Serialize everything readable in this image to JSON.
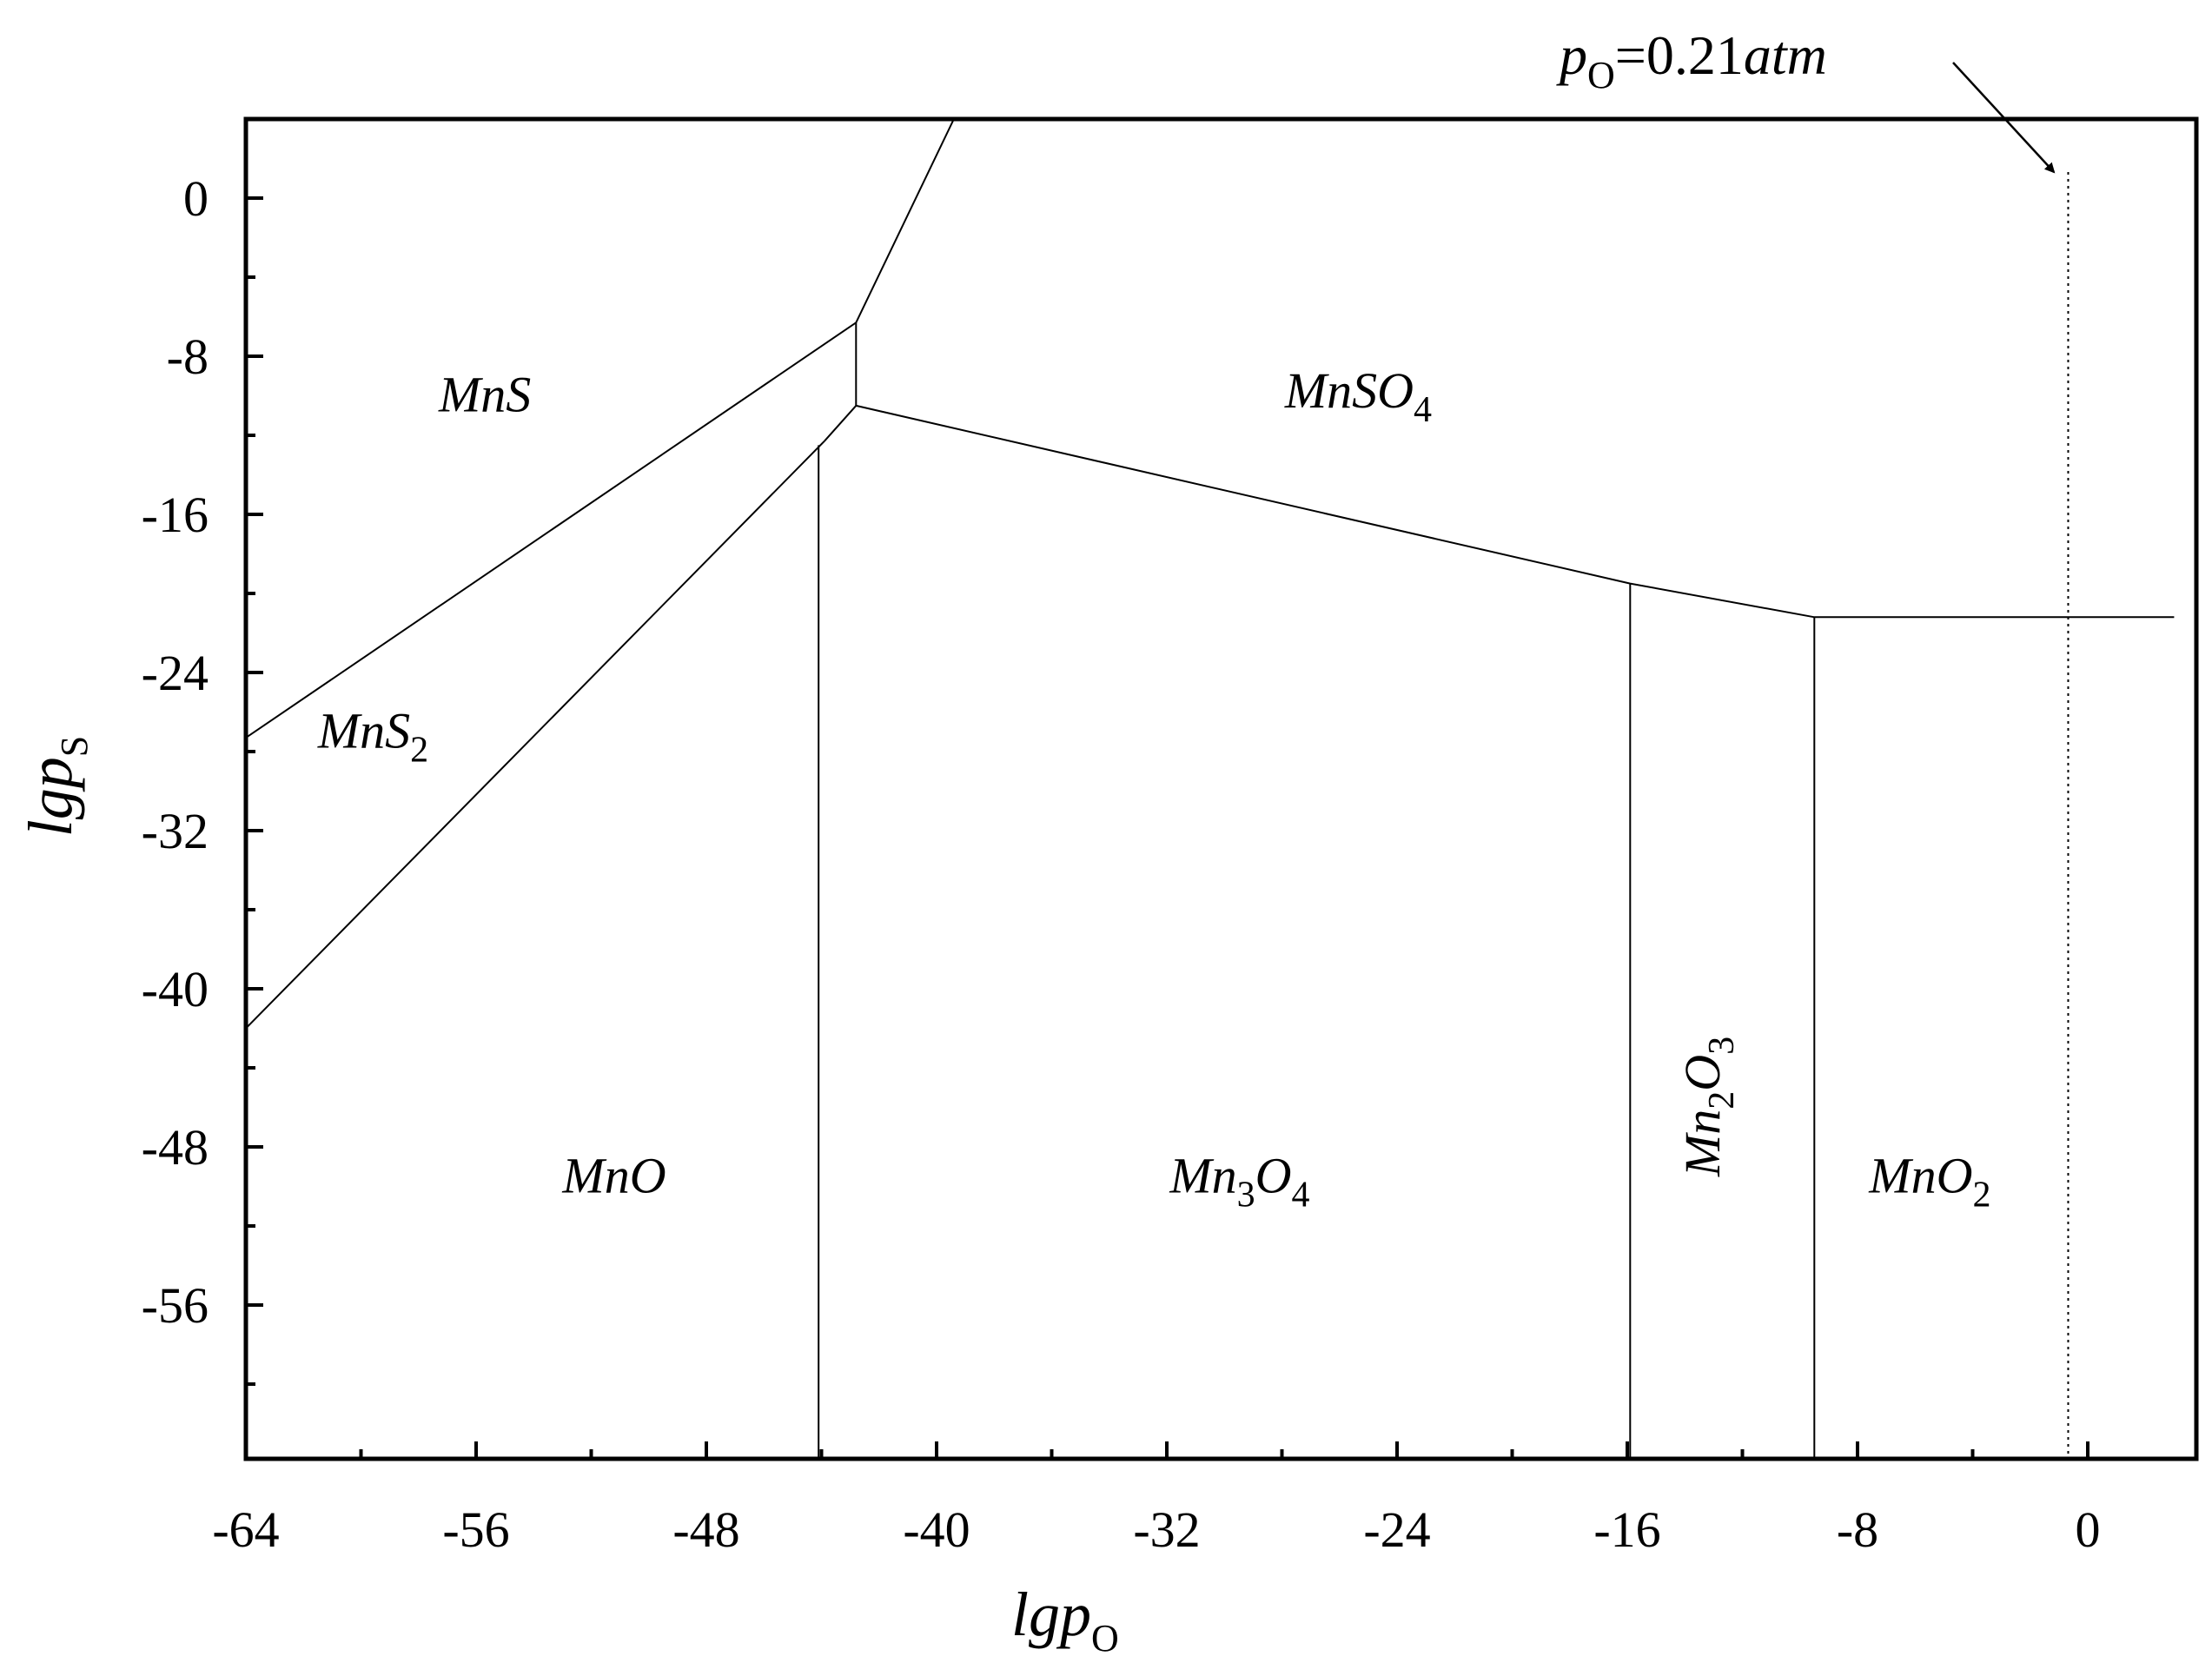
{
  "chart_data": {
    "type": "line",
    "xlabel": {
      "base": "lgp",
      "sub": "O"
    },
    "ylabel": {
      "base": "lgp",
      "sub": "S"
    },
    "xlim": [
      -64,
      3
    ],
    "ylim": [
      -64,
      4
    ],
    "x_ticks": [
      {
        "v": -64,
        "label": "-64"
      },
      {
        "v": -56,
        "label": "-56"
      },
      {
        "v": -48,
        "label": "-48"
      },
      {
        "v": -40,
        "label": "-40"
      },
      {
        "v": -32,
        "label": "-32"
      },
      {
        "v": -24,
        "label": "-24"
      },
      {
        "v": -16,
        "label": "-16"
      },
      {
        "v": -8,
        "label": "-8"
      },
      {
        "v": 0,
        "label": "0"
      }
    ],
    "y_ticks": [
      {
        "v": 0,
        "label": "0"
      },
      {
        "v": -8,
        "label": "-8"
      },
      {
        "v": -16,
        "label": "-16"
      },
      {
        "v": -24,
        "label": "-24"
      },
      {
        "v": -32,
        "label": "-32"
      },
      {
        "v": -40,
        "label": "-40"
      },
      {
        "v": -48,
        "label": "-48"
      },
      {
        "v": -56,
        "label": "-56"
      }
    ],
    "boundaries": [
      {
        "name": "MnS-MnS2",
        "points": [
          [
            -64,
            -27.3
          ],
          [
            -42.8,
            -6.3
          ]
        ]
      },
      {
        "name": "MnS-MnSO4-upper",
        "points": [
          [
            -42.8,
            -6.3
          ],
          [
            -39.4,
            4
          ]
        ]
      },
      {
        "name": "MnS-MnSO4-step",
        "points": [
          [
            -42.8,
            -6.3
          ],
          [
            -42.8,
            -10.5
          ]
        ]
      },
      {
        "name": "MnS2-MnO",
        "points": [
          [
            -64,
            -42.0
          ],
          [
            -43.9,
            -12.3
          ]
        ]
      },
      {
        "name": "MnS2-MnSO4",
        "points": [
          [
            -43.9,
            -12.3
          ],
          [
            -42.8,
            -10.5
          ]
        ]
      },
      {
        "name": "MnSO4-oxides",
        "points": [
          [
            -42.8,
            -10.5
          ],
          [
            -15.9,
            -19.5
          ],
          [
            -9.5,
            -21.2
          ],
          [
            3,
            -21.2
          ]
        ]
      },
      {
        "name": "MnO-Mn3O4",
        "points": [
          [
            -44.1,
            -12.5
          ],
          [
            -44.1,
            -64
          ]
        ]
      },
      {
        "name": "Mn3O4-Mn2O3",
        "points": [
          [
            -15.9,
            -19.5
          ],
          [
            -15.9,
            -64
          ]
        ]
      },
      {
        "name": "Mn2O3-MnO2",
        "points": [
          [
            -9.5,
            -21.2
          ],
          [
            -9.5,
            -64
          ]
        ]
      }
    ],
    "reference_line": {
      "x": -0.68,
      "style": "dotted"
    },
    "regions": [
      {
        "base": "MnS",
        "sub": "",
        "x": -57.3,
        "y": -10.8,
        "rotate": false
      },
      {
        "base": "MnS",
        "sub": "2",
        "x": -61.5,
        "y": -27.8,
        "rotate": false
      },
      {
        "base": "MnSO",
        "sub": "4",
        "x": -27.9,
        "y": -10.6,
        "rotate": false
      },
      {
        "base": "MnO",
        "sub": "",
        "x": -53.0,
        "y": -50.3,
        "rotate": false
      },
      {
        "base": "Mn",
        "sub": "3",
        "base2": "O",
        "sub2": "4",
        "x": -31.9,
        "y": -50.3,
        "rotate": false
      },
      {
        "base": "Mn",
        "sub": "2",
        "base2": "O",
        "sub2": "3",
        "x": -12.8,
        "y": -49.5,
        "rotate": true
      },
      {
        "base": "MnO",
        "sub": "2",
        "x": -7.6,
        "y": -50.3,
        "rotate": false
      }
    ],
    "annotations": [
      {
        "p": "p",
        "sub": "O",
        "rest": "=0.21",
        "unit": "atm"
      }
    ],
    "grid": false,
    "legend": "none"
  }
}
